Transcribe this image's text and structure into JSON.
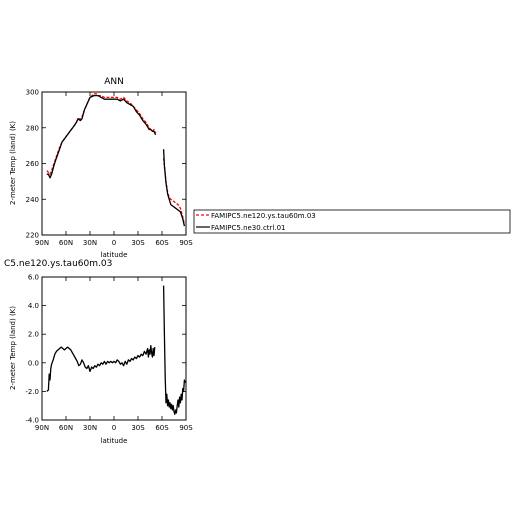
{
  "chart_data": [
    {
      "type": "line",
      "title": "ANN",
      "xlabel": "latitude",
      "ylabel": "2-meter Temp (land) (K)",
      "xticks": [
        "90N",
        "60N",
        "30N",
        "0",
        "30S",
        "60S",
        "90S"
      ],
      "yticks": [
        "220",
        "240",
        "260",
        "280",
        "300"
      ],
      "xlim": [
        90,
        -90
      ],
      "ylim": [
        220,
        300
      ],
      "legend_position": "right of plot",
      "series": [
        {
          "name": "FAMIPC5.ne120.ys.tau60m.03",
          "color": "#ff0000",
          "style": "dashed",
          "segments": [
            [
              [
                84,
                256
              ],
              [
                82,
                255
              ],
              [
                80,
                254
              ],
              [
                78,
                256
              ],
              [
                75,
                260
              ],
              [
                72,
                264
              ],
              [
                68,
                269
              ],
              [
                65,
                272
              ],
              [
                60,
                275
              ],
              [
                55,
                278
              ],
              [
                50,
                281
              ],
              [
                47,
                283
              ],
              [
                45,
                285
              ],
              [
                42,
                285
              ],
              [
                40,
                286
              ],
              [
                37,
                290
              ],
              [
                34,
                293
              ],
              [
                30,
                297
              ],
              [
                25,
                299
              ],
              [
                22,
                299
              ],
              [
                20,
                298
              ],
              [
                16,
                298
              ],
              [
                12,
                297
              ],
              [
                8,
                297
              ],
              [
                4,
                297
              ],
              [
                0,
                297
              ],
              [
                -4,
                297
              ],
              [
                -8,
                296
              ],
              [
                -12,
                297
              ],
              [
                -16,
                295
              ],
              [
                -20,
                294
              ],
              [
                -24,
                292
              ],
              [
                -28,
                290
              ],
              [
                -32,
                288
              ],
              [
                -36,
                285
              ],
              [
                -40,
                283
              ],
              [
                -44,
                280
              ],
              [
                -46,
                279
              ],
              [
                -48,
                278
              ],
              [
                -50,
                279
              ],
              [
                -52,
                277
              ]
            ],
            [
              [
                -62,
                263
              ],
              [
                -63,
                258
              ],
              [
                -65,
                250
              ],
              [
                -67,
                244
              ],
              [
                -69,
                241
              ],
              [
                -71,
                240
              ],
              [
                -74,
                239
              ],
              [
                -77,
                238
              ],
              [
                -80,
                237
              ],
              [
                -83,
                235
              ],
              [
                -86,
                230
              ],
              [
                -88,
                226
              ]
            ]
          ]
        },
        {
          "name": "FAMIPC5.ne30.ctrl.01",
          "color": "#000000",
          "style": "solid",
          "segments": [
            [
              [
                84,
                254
              ],
              [
                82,
                254
              ],
              [
                80,
                252
              ],
              [
                78,
                254
              ],
              [
                75,
                259
              ],
              [
                72,
                263
              ],
              [
                68,
                268
              ],
              [
                65,
                272
              ],
              [
                60,
                275
              ],
              [
                55,
                278
              ],
              [
                50,
                281
              ],
              [
                47,
                283
              ],
              [
                45,
                285
              ],
              [
                42,
                284
              ],
              [
                40,
                285
              ],
              [
                37,
                290
              ],
              [
                34,
                293
              ],
              [
                30,
                297
              ],
              [
                25,
                298
              ],
              [
                22,
                298
              ],
              [
                20,
                298
              ],
              [
                16,
                297
              ],
              [
                12,
                296
              ],
              [
                8,
                296
              ],
              [
                4,
                296
              ],
              [
                0,
                296
              ],
              [
                -4,
                296
              ],
              [
                -8,
                295
              ],
              [
                -12,
                296
              ],
              [
                -16,
                294
              ],
              [
                -20,
                293
              ],
              [
                -24,
                292
              ],
              [
                -28,
                289
              ],
              [
                -32,
                287
              ],
              [
                -36,
                284
              ],
              [
                -40,
                282
              ],
              [
                -44,
                279
              ],
              [
                -46,
                279
              ],
              [
                -48,
                278
              ],
              [
                -50,
                278
              ],
              [
                -52,
                276
              ]
            ],
            [
              [
                -62,
                268
              ],
              [
                -63,
                259
              ],
              [
                -65,
                249
              ],
              [
                -67,
                243
              ],
              [
                -69,
                240
              ],
              [
                -71,
                237
              ],
              [
                -74,
                236
              ],
              [
                -77,
                235
              ],
              [
                -80,
                234
              ],
              [
                -83,
                233
              ],
              [
                -86,
                229
              ],
              [
                -88,
                225
              ]
            ]
          ]
        }
      ]
    },
    {
      "type": "line",
      "title": "C5.ne120.ys.tau60m.03",
      "xlabel": "latitude",
      "ylabel": "2-meter Temp (land) (K)",
      "xticks": [
        "90N",
        "60N",
        "30N",
        "0",
        "30S",
        "60S",
        "90S"
      ],
      "yticks": [
        "-4.0",
        "-2.0",
        "0.0",
        "2.0",
        "4.0",
        "6.0"
      ],
      "xlim": [
        90,
        -90
      ],
      "ylim": [
        -4,
        6
      ],
      "series": [
        {
          "color": "#000000",
          "style": "solid",
          "segments": [
            [
              [
                84,
                -2.0
              ],
              [
                82,
                -1.9
              ],
              [
                81,
                -0.8
              ],
              [
                80,
                -1.2
              ],
              [
                79,
                -0.4
              ],
              [
                78,
                -0.1
              ],
              [
                76,
                0.2
              ],
              [
                74,
                0.6
              ],
              [
                72,
                0.8
              ],
              [
                70,
                0.9
              ],
              [
                68,
                1.0
              ],
              [
                66,
                1.1
              ],
              [
                64,
                1.0
              ],
              [
                62,
                0.9
              ],
              [
                60,
                1.0
              ],
              [
                58,
                1.1
              ],
              [
                56,
                1.0
              ],
              [
                54,
                0.9
              ],
              [
                52,
                0.7
              ],
              [
                50,
                0.5
              ],
              [
                48,
                0.3
              ],
              [
                46,
                0.1
              ],
              [
                44,
                -0.2
              ],
              [
                42,
                -0.1
              ],
              [
                40,
                0.2
              ],
              [
                38,
                0.0
              ],
              [
                36,
                -0.3
              ],
              [
                34,
                -0.4
              ],
              [
                32,
                -0.2
              ],
              [
                30,
                -0.6
              ],
              [
                28,
                -0.3
              ],
              [
                26,
                -0.4
              ],
              [
                24,
                -0.2
              ],
              [
                22,
                -0.3
              ],
              [
                20,
                -0.1
              ],
              [
                18,
                -0.2
              ],
              [
                16,
                0.0
              ],
              [
                14,
                -0.1
              ],
              [
                12,
                0.1
              ],
              [
                10,
                -0.1
              ],
              [
                8,
                0.1
              ],
              [
                6,
                0.0
              ],
              [
                4,
                0.1
              ],
              [
                2,
                0.0
              ],
              [
                0,
                0.1
              ],
              [
                -2,
                0.0
              ],
              [
                -4,
                0.2
              ],
              [
                -6,
                0.1
              ],
              [
                -8,
                -0.1
              ],
              [
                -10,
                0.0
              ],
              [
                -12,
                -0.2
              ],
              [
                -14,
                0.1
              ],
              [
                -16,
                -0.1
              ],
              [
                -18,
                0.2
              ],
              [
                -20,
                0.1
              ],
              [
                -22,
                0.3
              ],
              [
                -24,
                0.2
              ],
              [
                -26,
                0.4
              ],
              [
                -28,
                0.3
              ],
              [
                -30,
                0.5
              ],
              [
                -32,
                0.4
              ],
              [
                -34,
                0.6
              ],
              [
                -36,
                0.5
              ],
              [
                -38,
                0.8
              ],
              [
                -40,
                0.6
              ],
              [
                -42,
                1.0
              ],
              [
                -43,
                0.4
              ],
              [
                -44,
                0.9
              ],
              [
                -45,
                0.6
              ],
              [
                -46,
                1.2
              ],
              [
                -47,
                0.7
              ],
              [
                -48,
                0.4
              ],
              [
                -49,
                1.0
              ],
              [
                -50,
                0.5
              ],
              [
                -51,
                1.1
              ]
            ],
            [
              [
                -62,
                5.4
              ],
              [
                -63,
                2.0
              ],
              [
                -64,
                -1.0
              ],
              [
                -65,
                -2.8
              ],
              [
                -66,
                -2.2
              ],
              [
                -67,
                -3.0
              ],
              [
                -68,
                -2.6
              ],
              [
                -69,
                -3.1
              ],
              [
                -70,
                -2.8
              ],
              [
                -71,
                -3.2
              ],
              [
                -72,
                -2.9
              ],
              [
                -73,
                -3.3
              ],
              [
                -74,
                -3.0
              ],
              [
                -75,
                -3.4
              ],
              [
                -76,
                -3.6
              ],
              [
                -77,
                -3.3
              ],
              [
                -78,
                -3.5
              ],
              [
                -79,
                -3.0
              ],
              [
                -80,
                -2.6
              ],
              [
                -81,
                -3.1
              ],
              [
                -82,
                -2.4
              ],
              [
                -83,
                -2.8
              ],
              [
                -84,
                -2.2
              ],
              [
                -85,
                -2.6
              ],
              [
                -86,
                -1.8
              ],
              [
                -87,
                -2.0
              ],
              [
                -88,
                -1.2
              ],
              [
                -89,
                -1.4
              ]
            ]
          ]
        }
      ]
    }
  ]
}
